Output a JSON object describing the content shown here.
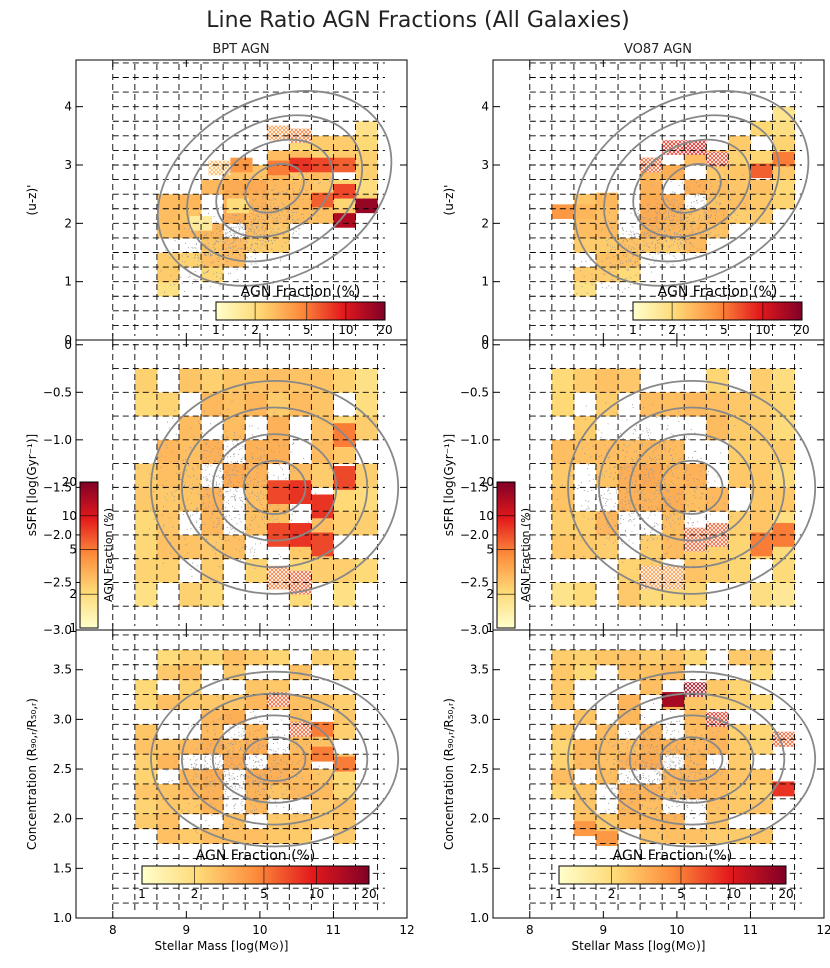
{
  "figure": {
    "title": "Line Ratio AGN Fractions (All Galaxies)",
    "column_titles": [
      "BPT AGN",
      "VO87 AGN"
    ],
    "colorbar_label": "AGN Fraction (%)",
    "colorbar_ticks": [
      1,
      2,
      5,
      10,
      20
    ]
  },
  "chart_data": [
    {
      "type": "heatmap",
      "panel": "top-left",
      "title": "BPT AGN",
      "xlabel": "",
      "ylabel": "(u-z)'",
      "xlim": [
        7.5,
        12
      ],
      "ylim": [
        0,
        4.8
      ],
      "yticks": [
        0,
        1,
        2,
        3,
        4
      ],
      "grid": true,
      "colorbar": {
        "label": "AGN Fraction (%)",
        "ticks": [
          1,
          2,
          5,
          10,
          20
        ],
        "range": [
          1,
          20
        ],
        "scale": "log",
        "placement": "bottom-right"
      },
      "values": [
        {
          "x": 10.25,
          "y": 3.55,
          "f": 4,
          "hatch": true
        },
        {
          "x": 10.55,
          "y": 3.5,
          "f": 5,
          "hatch": true
        },
        {
          "x": 10.25,
          "y": 2.95,
          "f": 5
        },
        {
          "x": 10.55,
          "y": 3.0,
          "f": 8
        },
        {
          "x": 10.85,
          "y": 3.0,
          "f": 7
        },
        {
          "x": 11.15,
          "y": 3.0,
          "f": 6
        },
        {
          "x": 10.85,
          "y": 2.4,
          "f": 6
        },
        {
          "x": 11.15,
          "y": 2.55,
          "f": 7
        },
        {
          "x": 11.45,
          "y": 2.3,
          "f": 17
        },
        {
          "x": 11.15,
          "y": 2.05,
          "f": 14
        },
        {
          "x": 9.45,
          "y": 2.95,
          "f": 3,
          "hatch": true
        },
        {
          "x": 9.75,
          "y": 3.0,
          "f": 4
        },
        {
          "x": 9.2,
          "y": 2.0,
          "f": 1.5
        },
        {
          "x": 9.7,
          "y": 2.3,
          "f": 2
        }
      ]
    },
    {
      "type": "heatmap",
      "panel": "top-right",
      "title": "VO87 AGN",
      "xlabel": "",
      "ylabel": "(u-z)'",
      "xlim": [
        7.5,
        12
      ],
      "ylim": [
        0,
        4.8
      ],
      "yticks": [
        0,
        1,
        2,
        3,
        4
      ],
      "grid": true,
      "colorbar": {
        "label": "AGN Fraction (%)",
        "ticks": [
          1,
          2,
          5,
          10,
          20
        ],
        "range": [
          1,
          20
        ],
        "scale": "log",
        "placement": "bottom-right"
      },
      "values": [
        {
          "x": 9.95,
          "y": 3.3,
          "f": 8,
          "hatch": true
        },
        {
          "x": 10.25,
          "y": 3.3,
          "f": 9,
          "hatch": true
        },
        {
          "x": 10.55,
          "y": 3.1,
          "f": 7,
          "hatch": true
        },
        {
          "x": 9.65,
          "y": 3.0,
          "f": 6,
          "hatch": true
        },
        {
          "x": 11.15,
          "y": 2.9,
          "f": 6
        },
        {
          "x": 11.45,
          "y": 3.1,
          "f": 5
        },
        {
          "x": 8.45,
          "y": 2.2,
          "f": 4
        },
        {
          "x": 8.75,
          "y": 2.2,
          "f": 3
        },
        {
          "x": 9.05,
          "y": 2.4,
          "f": 3
        }
      ]
    },
    {
      "type": "heatmap",
      "panel": "middle-left",
      "xlabel": "",
      "ylabel": "sSFR [log(Gyr⁻¹)]",
      "xlim": [
        7.5,
        12
      ],
      "ylim": [
        -3.0,
        0.05
      ],
      "yticks": [
        0.0,
        -0.5,
        -1.0,
        -1.5,
        -2.0,
        -2.5,
        -3.0
      ],
      "grid": true,
      "colorbar": {
        "label": "AGN Fraction (%)",
        "ticks": [
          1,
          2,
          5,
          10,
          20
        ],
        "range": [
          1,
          20
        ],
        "scale": "log",
        "placement": "left"
      },
      "values": [
        {
          "x": 10.25,
          "y": -1.55,
          "f": 7
        },
        {
          "x": 10.55,
          "y": -1.55,
          "f": 8
        },
        {
          "x": 10.85,
          "y": -1.7,
          "f": 8
        },
        {
          "x": 11.15,
          "y": -1.4,
          "f": 7
        },
        {
          "x": 10.25,
          "y": -2.0,
          "f": 7
        },
        {
          "x": 10.55,
          "y": -2.0,
          "f": 8
        },
        {
          "x": 10.85,
          "y": -2.1,
          "f": 7
        },
        {
          "x": 11.15,
          "y": -0.95,
          "f": 5
        },
        {
          "x": 10.25,
          "y": -2.45,
          "f": 5,
          "hatch": true
        },
        {
          "x": 10.55,
          "y": -2.5,
          "f": 6,
          "hatch": true
        }
      ]
    },
    {
      "type": "heatmap",
      "panel": "middle-right",
      "xlabel": "",
      "ylabel": "sSFR [log(Gyr⁻¹)]",
      "xlim": [
        7.5,
        12
      ],
      "ylim": [
        -3.0,
        0.05
      ],
      "yticks": [
        0.0,
        -0.5,
        -1.0,
        -1.5,
        -2.0,
        -2.5,
        -3.0
      ],
      "grid": true,
      "colorbar": {
        "label": "AGN Fraction (%)",
        "ticks": [
          1,
          2,
          5,
          10,
          20
        ],
        "range": [
          1,
          20
        ],
        "scale": "log",
        "placement": "left"
      },
      "values": [
        {
          "x": 10.25,
          "y": -2.05,
          "f": 6,
          "hatch": true
        },
        {
          "x": 10.55,
          "y": -2.0,
          "f": 6,
          "hatch": true
        },
        {
          "x": 11.15,
          "y": -2.1,
          "f": 5
        },
        {
          "x": 11.45,
          "y": -2.0,
          "f": 5
        },
        {
          "x": 9.65,
          "y": -2.45,
          "f": 4,
          "hatch": true
        },
        {
          "x": 9.95,
          "y": -2.45,
          "f": 4,
          "hatch": true
        }
      ]
    },
    {
      "type": "heatmap",
      "panel": "bottom-left",
      "xlabel": "Stellar Mass [log(M⊙)]",
      "ylabel": "Concentration (R₉₀,ᵣ/R₅₀,ᵣ)",
      "xlim": [
        7.5,
        12
      ],
      "ylim": [
        1.0,
        3.9
      ],
      "xticks": [
        8,
        9,
        10,
        11,
        12
      ],
      "yticks": [
        1.0,
        1.5,
        2.0,
        2.5,
        3.0,
        3.5
      ],
      "grid": true,
      "colorbar": {
        "label": "AGN Fraction (%)",
        "ticks": [
          1,
          2,
          5,
          10,
          20
        ],
        "range": [
          1,
          20
        ],
        "scale": "log",
        "placement": "bottom"
      },
      "values": [
        {
          "x": 10.25,
          "y": 3.2,
          "f": 6,
          "hatch": true
        },
        {
          "x": 10.55,
          "y": 2.9,
          "f": 6,
          "hatch": true
        },
        {
          "x": 10.85,
          "y": 2.65,
          "f": 5
        },
        {
          "x": 11.15,
          "y": 2.55,
          "f": 5
        },
        {
          "x": 10.85,
          "y": 2.9,
          "f": 5
        }
      ]
    },
    {
      "type": "heatmap",
      "panel": "bottom-right",
      "xlabel": "Stellar Mass [log(M⊙)]",
      "ylabel": "Concentration (R₉₀,ᵣ/R₅₀,ᵣ)",
      "xlim": [
        7.5,
        12
      ],
      "ylim": [
        1.0,
        3.9
      ],
      "xticks": [
        8,
        9,
        10,
        11,
        12
      ],
      "yticks": [
        1.0,
        1.5,
        2.0,
        2.5,
        3.0,
        3.5
      ],
      "grid": true,
      "colorbar": {
        "label": "AGN Fraction (%)",
        "ticks": [
          1,
          2,
          5,
          10,
          20
        ],
        "range": [
          1,
          20
        ],
        "scale": "log",
        "placement": "bottom"
      },
      "values": [
        {
          "x": 9.95,
          "y": 3.2,
          "f": 15
        },
        {
          "x": 10.25,
          "y": 3.3,
          "f": 14,
          "hatch": true
        },
        {
          "x": 10.55,
          "y": 3.0,
          "f": 8,
          "hatch": true
        },
        {
          "x": 11.45,
          "y": 2.8,
          "f": 6,
          "hatch": true
        },
        {
          "x": 11.45,
          "y": 2.3,
          "f": 8
        },
        {
          "x": 8.75,
          "y": 1.9,
          "f": 4
        },
        {
          "x": 9.05,
          "y": 1.8,
          "f": 4
        }
      ]
    }
  ]
}
